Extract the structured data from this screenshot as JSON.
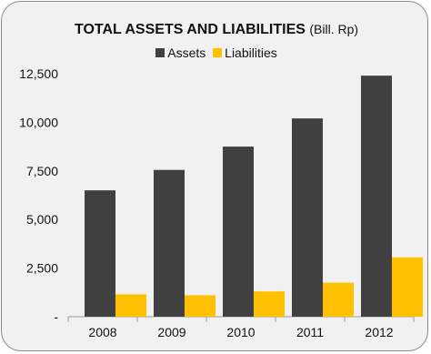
{
  "chart_data": {
    "type": "bar",
    "title": "TOTAL ASSETS AND LIABILITIES",
    "title_unit": "(Bill. Rp)",
    "categories": [
      "2008",
      "2009",
      "2010",
      "2011",
      "2012"
    ],
    "series": [
      {
        "name": "Assets",
        "color": "#404040",
        "values": [
          6500,
          7550,
          8750,
          10200,
          12400
        ]
      },
      {
        "name": "Liabilities",
        "color": "#ffc000",
        "values": [
          1150,
          1100,
          1300,
          1750,
          3050
        ]
      }
    ],
    "ylim": [
      0,
      12500
    ],
    "yticks": [
      0,
      2500,
      5000,
      7500,
      10000,
      12500
    ],
    "ytick_labels": [
      "-",
      "2,500",
      "5,000",
      "7,500",
      "10,000",
      "12,500"
    ],
    "grid": false,
    "legend_position": "top-center"
  }
}
